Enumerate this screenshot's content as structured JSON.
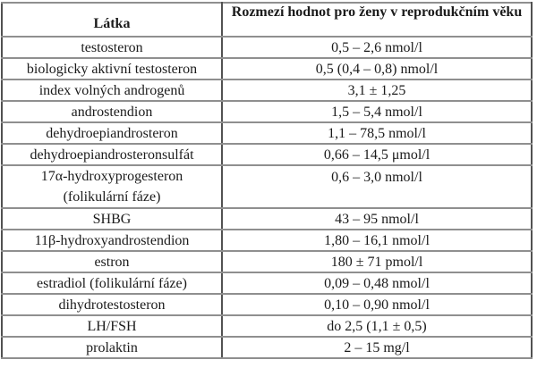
{
  "page": {
    "background_color": "#ffffff",
    "border_color_horizontal": "#8f8f8f",
    "border_color_vertical": "#525252",
    "text_color": "#1b1b1b"
  },
  "table": {
    "header": {
      "substance": "Látka",
      "range": "Rozmezí hodnot pro ženy v reprodukčním věku"
    },
    "rows": [
      {
        "substance": "testosteron",
        "value": "0,5 – 2,6 nmol/l"
      },
      {
        "substance": "biologicky aktivní testosteron",
        "value": "0,5 (0,4 – 0,8) nmol/l"
      },
      {
        "substance": "index volných androgenů",
        "value": "3,1 ± 1,25"
      },
      {
        "substance": "androstendion",
        "value": "1,5 – 5,4 nmol/l"
      },
      {
        "substance": "dehydroepiandrosteron",
        "value": "1,1 – 78,5 nmol/l"
      },
      {
        "substance": "dehydroepiandrosteronsulfát",
        "value": "0,66 – 14,5 μmol/l"
      },
      {
        "substance": "17α-hydroxyprogesteron",
        "substance_line2": "(folikulární fáze)",
        "value": "0,6 – 3,0 nmol/l"
      },
      {
        "substance": "SHBG",
        "value": "43 – 95 nmol/l"
      },
      {
        "substance": "11β-hydroxyandrostendion",
        "value": "1,80 – 16,1 nmol/l"
      },
      {
        "substance": "estron",
        "value": "180 ± 71 pmol/l"
      },
      {
        "substance": "estradiol (folikulární fáze)",
        "value": "0,09 – 0,48 nmol/l"
      },
      {
        "substance": "dihydrotestosteron",
        "value": "0,10 – 0,90 nmol/l"
      },
      {
        "substance": "LH/FSH",
        "value": "do 2,5 (1,1 ± 0,5)"
      },
      {
        "substance": "prolaktin",
        "value": "2 – 15 mg/l"
      }
    ]
  }
}
